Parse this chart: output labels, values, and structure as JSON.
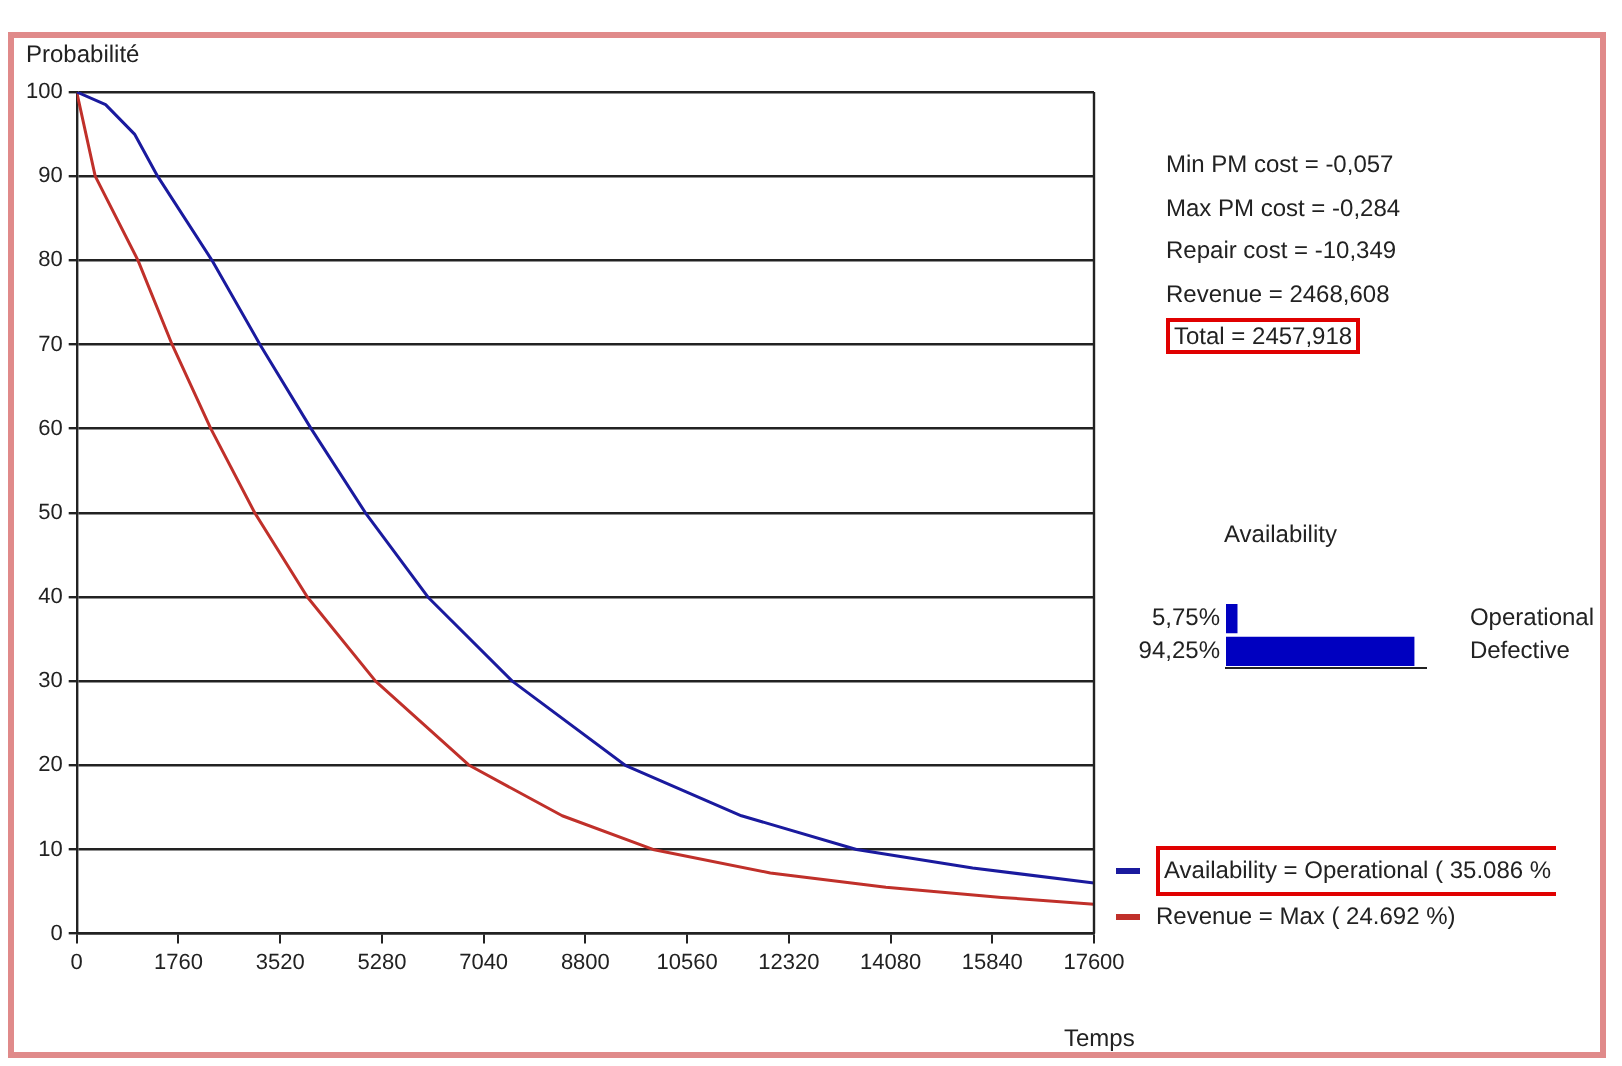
{
  "chart_data": [
    {
      "type": "line",
      "xlabel": "Temps",
      "ylabel": "Probabilité",
      "xlim": [
        0,
        17600
      ],
      "xticks": [
        0,
        1760,
        3520,
        5280,
        7040,
        8800,
        10560,
        12320,
        14080,
        15840,
        17600
      ],
      "ylim": [
        0,
        100
      ],
      "yticks": [
        0,
        10,
        20,
        30,
        40,
        50,
        60,
        70,
        80,
        90,
        100
      ],
      "grid": "y",
      "legend": "right",
      "marker": "none",
      "line_style": "solid",
      "annotations": [
        "Min PM cost = -0,057",
        "Max PM cost = -0,284",
        "Repair cost = -10,349",
        "Revenue = 2468,608",
        "Total = 2457,918"
      ],
      "series": [
        {
          "name": "Availability = Operational ( 35.086 %",
          "color": "#1a1a9e",
          "x": [
            0,
            500,
            1000,
            1399,
            2340,
            3170,
            4055,
            4995,
            6075,
            7535,
            9490,
            11500,
            13490,
            15500,
            17600
          ],
          "values": [
            100,
            98.5,
            95,
            90,
            80,
            70,
            60,
            50,
            40,
            30,
            20,
            14,
            10,
            7.8,
            6
          ]
        },
        {
          "name": "Revenue = Max ( 24.692 %)",
          "color": "#c0302a",
          "x": [
            0,
            320,
            1060,
            1650,
            2320,
            3080,
            3990,
            5170,
            6790,
            8400,
            9970,
            12000,
            14000,
            16000,
            17600
          ],
          "values": [
            100,
            90,
            80,
            70,
            60,
            50,
            40,
            30,
            20,
            14,
            10,
            7.2,
            5.5,
            4.3,
            3.5
          ]
        }
      ]
    },
    {
      "type": "bar",
      "orientation": "horizontal",
      "title": "Availability",
      "categories": [
        "Operational",
        "Defective"
      ],
      "values": [
        5.75,
        94.25
      ],
      "color": "#0000c0",
      "value_labels": [
        "5,75%",
        "94,25%"
      ]
    }
  ]
}
